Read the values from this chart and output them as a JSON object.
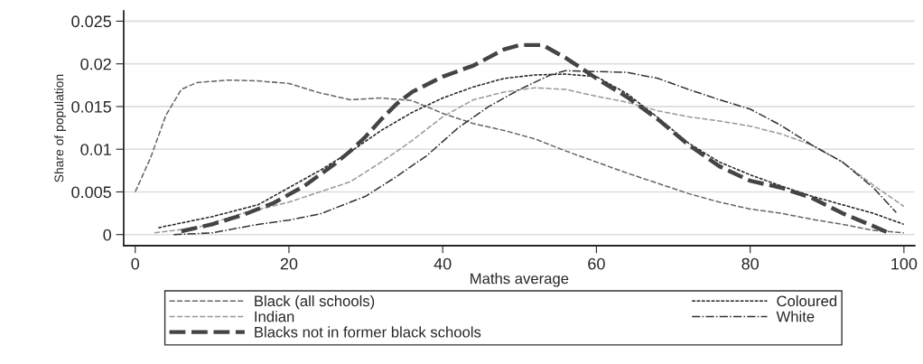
{
  "chart_data": {
    "type": "line",
    "xlabel": "Maths average",
    "ylabel": "Share of population",
    "xlim": [
      -1.5,
      101.4
    ],
    "xticks": [
      0,
      20,
      40,
      60,
      80,
      100
    ],
    "ylim": [
      -0.0013,
      0.0262
    ],
    "yticks": [
      0,
      0.005,
      0.01,
      0.015,
      0.02,
      0.025
    ],
    "grid": "y",
    "legend": "bottom",
    "marker": "none",
    "series": [
      {
        "name": "Black (all schools)",
        "color": "#666666",
        "line_style": "dashed",
        "x": [
          0,
          2,
          4,
          6,
          8,
          12,
          16,
          20,
          24,
          28,
          32,
          36,
          40,
          44,
          48,
          52,
          56,
          60,
          64,
          68,
          72,
          76,
          80,
          84,
          88,
          92,
          96,
          100
        ],
        "values": [
          0.005,
          0.009,
          0.014,
          0.017,
          0.0178,
          0.0181,
          0.018,
          0.0177,
          0.0166,
          0.0158,
          0.016,
          0.0157,
          0.0142,
          0.013,
          0.0122,
          0.0112,
          0.0098,
          0.0085,
          0.0072,
          0.006,
          0.0048,
          0.0038,
          0.003,
          0.0025,
          0.0018,
          0.0012,
          0.0005,
          0.0002
        ]
      },
      {
        "name": "Coloured",
        "color": "#222222",
        "line_style": "dotted",
        "x": [
          3,
          10,
          16,
          20,
          24,
          28,
          32,
          36,
          40,
          44,
          48,
          52,
          56,
          60,
          64,
          68,
          72,
          76,
          80,
          84,
          88,
          92,
          96,
          100
        ],
        "values": [
          0.0008,
          0.0021,
          0.0035,
          0.0055,
          0.0075,
          0.0097,
          0.0122,
          0.0143,
          0.016,
          0.0173,
          0.0183,
          0.0187,
          0.0188,
          0.0185,
          0.0165,
          0.0137,
          0.0107,
          0.0085,
          0.007,
          0.0057,
          0.0045,
          0.0035,
          0.0025,
          0.0012
        ]
      },
      {
        "name": "Indian",
        "color": "#999999",
        "line_style": "dashed",
        "x": [
          2.5,
          8,
          14,
          20,
          24,
          28,
          32,
          36,
          40,
          44,
          48,
          52,
          56,
          60,
          64,
          68,
          72,
          76,
          80,
          84,
          88,
          92,
          96,
          100
        ],
        "values": [
          0.0002,
          0.0008,
          0.0025,
          0.0038,
          0.005,
          0.0062,
          0.0085,
          0.011,
          0.0138,
          0.0158,
          0.0167,
          0.0172,
          0.017,
          0.0162,
          0.0155,
          0.0145,
          0.0138,
          0.0133,
          0.0127,
          0.0118,
          0.0105,
          0.0085,
          0.0058,
          0.0033
        ]
      },
      {
        "name": "White",
        "color": "#333333",
        "line_style": "dashdot",
        "x": [
          5,
          10,
          16,
          20,
          24,
          28,
          30,
          34,
          38,
          42,
          46,
          50,
          54,
          56,
          60,
          64,
          68,
          72,
          76,
          80,
          84,
          88,
          92,
          96,
          99
        ],
        "values": [
          0,
          0.0002,
          0.0012,
          0.0017,
          0.0024,
          0.0038,
          0.0045,
          0.0068,
          0.0093,
          0.0125,
          0.015,
          0.017,
          0.0187,
          0.0192,
          0.0191,
          0.019,
          0.0183,
          0.017,
          0.0158,
          0.0147,
          0.0128,
          0.0105,
          0.0085,
          0.0055,
          0.0026
        ]
      },
      {
        "name": "Blacks not in former black schools",
        "color": "#444444",
        "line_style": "dashed",
        "x": [
          6,
          10,
          14,
          18,
          22,
          26,
          28,
          30,
          32,
          34,
          36,
          40,
          44,
          48,
          50,
          53,
          56,
          60,
          64,
          68,
          72,
          76,
          80,
          84,
          88,
          92,
          96,
          98
        ],
        "values": [
          0.0004,
          0.0012,
          0.0023,
          0.0037,
          0.0057,
          0.0083,
          0.0098,
          0.0115,
          0.0135,
          0.0153,
          0.0167,
          0.0185,
          0.0198,
          0.0217,
          0.0222,
          0.0222,
          0.0207,
          0.0183,
          0.0161,
          0.0135,
          0.0105,
          0.008,
          0.0063,
          0.0055,
          0.0043,
          0.0025,
          0.001,
          0.0002
        ]
      }
    ]
  }
}
